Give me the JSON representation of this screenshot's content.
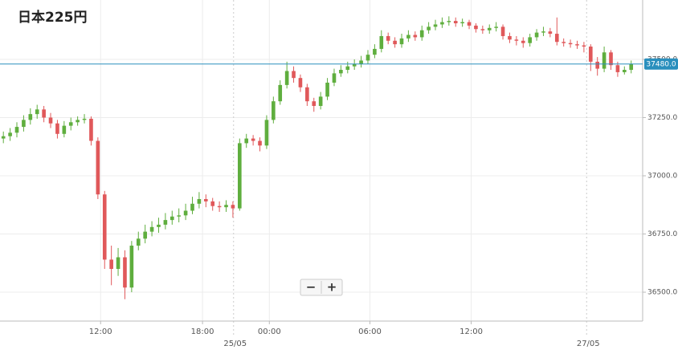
{
  "chart_data": {
    "type": "candlestick",
    "title": "日本225円",
    "open": [
      37160,
      37170,
      37185,
      37210,
      37240,
      37265,
      37285,
      37250,
      37225,
      37180,
      37215,
      37230,
      37240,
      37245,
      37150,
      36920,
      36640,
      36600,
      36650,
      36520,
      36700,
      36730,
      36760,
      36780,
      36790,
      36810,
      36825,
      36830,
      36850,
      36880,
      36900,
      36890,
      36870,
      36865,
      36875,
      36860,
      37140,
      37160,
      37150,
      37130,
      37240,
      37320,
      37390,
      37450,
      37420,
      37380,
      37320,
      37300,
      37340,
      37400,
      37440,
      37455,
      37470,
      37480,
      37495,
      37520,
      37545,
      37600,
      37580,
      37565,
      37590,
      37605,
      37595,
      37625,
      37640,
      37650,
      37660,
      37665,
      37655,
      37660,
      37645,
      37630,
      37625,
      37635,
      37640,
      37600,
      37585,
      37580,
      37570,
      37595,
      37615,
      37620,
      37610,
      37575,
      37570,
      37565,
      37560,
      37555,
      37490,
      37460,
      37530,
      37475,
      37445,
      37455
    ],
    "high": [
      37190,
      37205,
      37230,
      37260,
      37290,
      37305,
      37300,
      37270,
      37240,
      37235,
      37250,
      37255,
      37265,
      37255,
      37165,
      36935,
      36700,
      36690,
      36680,
      36720,
      36760,
      36790,
      36805,
      36820,
      36840,
      36850,
      36860,
      36880,
      36910,
      36930,
      36920,
      36905,
      36890,
      36895,
      36890,
      37160,
      37180,
      37175,
      37165,
      37260,
      37340,
      37410,
      37490,
      37470,
      37435,
      37395,
      37335,
      37360,
      37420,
      37460,
      37475,
      37490,
      37500,
      37515,
      37540,
      37565,
      37625,
      37615,
      37595,
      37610,
      37625,
      37620,
      37645,
      37660,
      37670,
      37680,
      37685,
      37680,
      37675,
      37670,
      37655,
      37645,
      37650,
      37660,
      37650,
      37615,
      37600,
      37595,
      37610,
      37630,
      37640,
      37635,
      37680,
      37590,
      37585,
      37580,
      37575,
      37565,
      37510,
      37555,
      37540,
      37490,
      37470,
      37495
    ],
    "low": [
      37140,
      37150,
      37165,
      37190,
      37220,
      37245,
      37230,
      37205,
      37160,
      37165,
      37195,
      37215,
      37225,
      37130,
      36900,
      36600,
      36530,
      36570,
      36470,
      36500,
      36680,
      36710,
      36740,
      36755,
      36770,
      36790,
      36800,
      36810,
      36835,
      36860,
      36865,
      36850,
      36845,
      36845,
      36820,
      36850,
      37120,
      37130,
      37105,
      37115,
      37225,
      37305,
      37375,
      37400,
      37360,
      37300,
      37275,
      37285,
      37325,
      37385,
      37425,
      37440,
      37455,
      37465,
      37480,
      37505,
      37530,
      37565,
      37550,
      37550,
      37575,
      37580,
      37580,
      37610,
      37625,
      37635,
      37645,
      37640,
      37640,
      37630,
      37615,
      37610,
      37610,
      37620,
      37585,
      37570,
      37560,
      37550,
      37555,
      37580,
      37600,
      37595,
      37560,
      37555,
      37550,
      37545,
      37530,
      37450,
      37430,
      37445,
      37455,
      37425,
      37435,
      37440
    ],
    "close": [
      37170,
      37185,
      37210,
      37240,
      37265,
      37285,
      37250,
      37225,
      37180,
      37215,
      37230,
      37240,
      37245,
      37150,
      36920,
      36640,
      36600,
      36650,
      36520,
      36700,
      36730,
      36760,
      36780,
      36790,
      36810,
      36825,
      36830,
      36850,
      36880,
      36900,
      36890,
      36870,
      36865,
      36875,
      36860,
      37140,
      37160,
      37150,
      37130,
      37240,
      37320,
      37390,
      37450,
      37420,
      37380,
      37320,
      37300,
      37340,
      37400,
      37440,
      37455,
      37470,
      37480,
      37495,
      37520,
      37545,
      37600,
      37580,
      37565,
      37590,
      37605,
      37595,
      37625,
      37640,
      37650,
      37660,
      37665,
      37655,
      37660,
      37645,
      37630,
      37625,
      37635,
      37640,
      37600,
      37585,
      37580,
      37570,
      37595,
      37615,
      37620,
      37610,
      37575,
      37570,
      37565,
      37560,
      37555,
      37490,
      37460,
      37530,
      37475,
      37445,
      37455,
      37480
    ],
    "up_color": "#5fae3e",
    "down_color": "#e0585a",
    "xlim": [
      -0.5,
      94.7
    ],
    "xticks": [
      {
        "value": 14.4,
        "label": "12:00"
      },
      {
        "value": 29.5,
        "label": "18:00"
      },
      {
        "value": 39.4,
        "label": "00:00"
      },
      {
        "value": 54.3,
        "label": "06:00"
      },
      {
        "value": 69.3,
        "label": "12:00"
      }
    ],
    "date_ticks": [
      {
        "value": 34.1,
        "label": "25/05"
      },
      {
        "value": 86.4,
        "label": "27/05"
      }
    ],
    "ylim": [
      36376,
      37755
    ],
    "yticks": [
      {
        "value": 36500,
        "label": "36500.0"
      },
      {
        "value": 36750,
        "label": "36750.0"
      },
      {
        "value": 37000,
        "label": "37000.0"
      },
      {
        "value": 37250,
        "label": "37250.0"
      },
      {
        "value": 37500,
        "label": "37500.0"
      }
    ],
    "grid": true,
    "last_price": 37480,
    "last_price_label": "37480.0",
    "last_price_color": "#2a8fbd",
    "zoom_controls": [
      "−",
      "+"
    ]
  }
}
